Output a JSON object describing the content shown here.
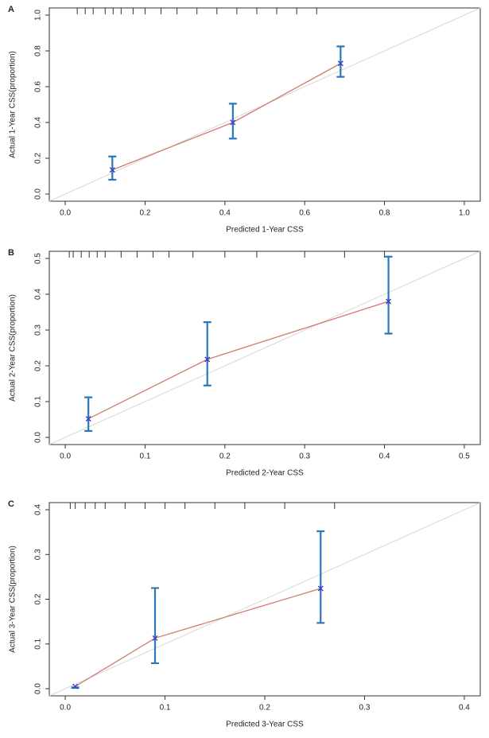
{
  "chart_data": [
    {
      "type": "line",
      "panel_label": "A",
      "x_label": "Predicted 1-Year CSS",
      "y_label": "Actual 1-Year  CSS(proportion)",
      "xlim": [
        0,
        1
      ],
      "ylim": [
        0,
        1
      ],
      "xticks": [
        {
          "value": 0,
          "label": "0.0"
        },
        0.2,
        0.4,
        0.6,
        0.8,
        {
          "value": 1,
          "label": "1.0"
        }
      ],
      "yticks": [
        {
          "value": 0,
          "label": "0.0"
        },
        0.2,
        0.4,
        0.6,
        0.8,
        {
          "value": 1,
          "label": "1.0"
        }
      ],
      "rug": [
        0.03,
        0.05,
        0.07,
        0.1,
        0.12,
        0.14,
        0.17,
        0.2,
        0.24,
        0.28,
        0.33,
        0.38,
        0.43,
        0.48,
        0.53,
        0.58,
        0.63
      ],
      "x": [
        0.118,
        0.42,
        0.69
      ],
      "values": [
        0.135,
        0.4,
        0.73
      ],
      "ci_low": [
        0.08,
        0.31,
        0.655
      ],
      "ci_high": [
        0.21,
        0.505,
        0.825
      ],
      "line_color": "#d07a6e",
      "bar_color": "#2a78bd",
      "marker_color": "#3a3fc4"
    },
    {
      "type": "line",
      "panel_label": "B",
      "x_label": "Predicted  2-Year CSS",
      "y_label": "Actual 2-Year CSS(proportion)",
      "xlim": [
        0,
        0.5
      ],
      "ylim": [
        0,
        0.5
      ],
      "xticks": [
        {
          "value": 0,
          "label": "0.0"
        },
        0.1,
        0.2,
        0.3,
        0.4,
        0.5
      ],
      "yticks": [
        {
          "value": 0,
          "label": "0.0"
        },
        0.1,
        0.2,
        0.3,
        0.4,
        0.5
      ],
      "rug": [
        0.005,
        0.01,
        0.02,
        0.03,
        0.04,
        0.05,
        0.07,
        0.09,
        0.11,
        0.13,
        0.16,
        0.2,
        0.24,
        0.3,
        0.35,
        0.4
      ],
      "x": [
        0.029,
        0.178,
        0.405
      ],
      "values": [
        0.052,
        0.218,
        0.38
      ],
      "ci_low": [
        0.018,
        0.145,
        0.29
      ],
      "ci_high": [
        0.112,
        0.322,
        0.505
      ],
      "line_color": "#d07a6e",
      "bar_color": "#2a78bd",
      "marker_color": "#3a3fc4"
    },
    {
      "type": "line",
      "panel_label": "C",
      "x_label": "Predicted  3-Year CSS",
      "y_label": "Actual   3-Year  CSS(proportion)",
      "xlim": [
        0,
        0.4
      ],
      "ylim": [
        0,
        0.4
      ],
      "xticks": [
        {
          "value": 0,
          "label": "0.0"
        },
        0.1,
        0.2,
        0.3,
        0.4
      ],
      "yticks": [
        {
          "value": 0,
          "label": "0.0"
        },
        0.1,
        0.2,
        0.3,
        0.4
      ],
      "rug": [
        0.005,
        0.01,
        0.02,
        0.03,
        0.04,
        0.06,
        0.08,
        0.1,
        0.12,
        0.15,
        0.18,
        0.22,
        0.27
      ],
      "x": [
        0.01,
        0.09,
        0.256
      ],
      "values": [
        0.005,
        0.113,
        0.224
      ],
      "ci_low": [
        0.002,
        0.057,
        0.147
      ],
      "ci_high": [
        0.003,
        0.225,
        0.352
      ],
      "line_color": "#d07a6e",
      "bar_color": "#2a78bd",
      "marker_color": "#3a3fc4"
    }
  ]
}
